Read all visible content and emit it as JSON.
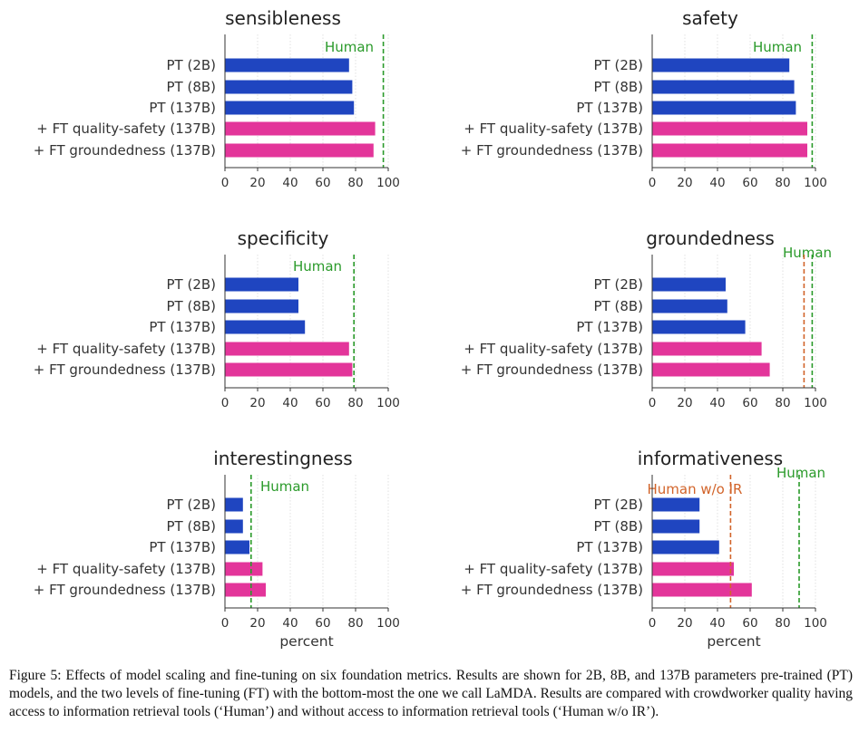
{
  "chart_data": [
    {
      "type": "bar",
      "orientation": "horizontal",
      "title": "sensibleness",
      "categories": [
        "PT (2B)",
        "PT (8B)",
        "PT (137B)",
        "+ FT quality-safety (137B)",
        "+ FT groundedness (137B)"
      ],
      "values": [
        76,
        78,
        79,
        92,
        91
      ],
      "bar_colors": [
        "#1f45c0",
        "#1f45c0",
        "#1f45c0",
        "#e3359a",
        "#e3359a"
      ],
      "xlim": [
        0,
        100
      ],
      "xticks": [
        0,
        20,
        40,
        60,
        80,
        100
      ],
      "xlabel": "",
      "reference_lines": [
        {
          "label": "Human",
          "value": 97,
          "color": "#2a9a2a"
        }
      ]
    },
    {
      "type": "bar",
      "orientation": "horizontal",
      "title": "safety",
      "categories": [
        "PT (2B)",
        "PT (8B)",
        "PT (137B)",
        "+ FT quality-safety (137B)",
        "+ FT groundedness (137B)"
      ],
      "values": [
        84,
        87,
        88,
        95,
        95
      ],
      "bar_colors": [
        "#1f45c0",
        "#1f45c0",
        "#1f45c0",
        "#e3359a",
        "#e3359a"
      ],
      "xlim": [
        0,
        100
      ],
      "xticks": [
        0,
        20,
        40,
        60,
        80,
        100
      ],
      "xlabel": "",
      "reference_lines": [
        {
          "label": "Human",
          "value": 98,
          "color": "#2a9a2a"
        }
      ]
    },
    {
      "type": "bar",
      "orientation": "horizontal",
      "title": "specificity",
      "categories": [
        "PT (2B)",
        "PT (8B)",
        "PT (137B)",
        "+ FT quality-safety (137B)",
        "+ FT groundedness (137B)"
      ],
      "values": [
        45,
        45,
        49,
        76,
        78
      ],
      "bar_colors": [
        "#1f45c0",
        "#1f45c0",
        "#1f45c0",
        "#e3359a",
        "#e3359a"
      ],
      "xlim": [
        0,
        100
      ],
      "xticks": [
        0,
        20,
        40,
        60,
        80,
        100
      ],
      "xlabel": "",
      "reference_lines": [
        {
          "label": "Human",
          "value": 79,
          "color": "#2a9a2a"
        }
      ]
    },
    {
      "type": "bar",
      "orientation": "horizontal",
      "title": "groundedness",
      "categories": [
        "PT (2B)",
        "PT (8B)",
        "PT (137B)",
        "+ FT quality-safety (137B)",
        "+ FT groundedness (137B)"
      ],
      "values": [
        45,
        46,
        57,
        67,
        72
      ],
      "bar_colors": [
        "#1f45c0",
        "#1f45c0",
        "#1f45c0",
        "#e3359a",
        "#e3359a"
      ],
      "xlim": [
        0,
        100
      ],
      "xticks": [
        0,
        20,
        40,
        60,
        80,
        100
      ],
      "xlabel": "",
      "reference_lines": [
        {
          "label": "Human",
          "value": 98,
          "color": "#2a9a2a"
        },
        {
          "label": "",
          "value": 93,
          "color": "#d2642a"
        }
      ]
    },
    {
      "type": "bar",
      "orientation": "horizontal",
      "title": "interestingness",
      "categories": [
        "PT (2B)",
        "PT (8B)",
        "PT (137B)",
        "+ FT quality-safety (137B)",
        "+ FT groundedness (137B)"
      ],
      "values": [
        11,
        11,
        15,
        23,
        25
      ],
      "bar_colors": [
        "#1f45c0",
        "#1f45c0",
        "#1f45c0",
        "#e3359a",
        "#e3359a"
      ],
      "xlim": [
        0,
        100
      ],
      "xticks": [
        0,
        20,
        40,
        60,
        80,
        100
      ],
      "xlabel": "percent",
      "reference_lines": [
        {
          "label": "Human",
          "value": 16,
          "color": "#2a9a2a"
        }
      ]
    },
    {
      "type": "bar",
      "orientation": "horizontal",
      "title": "informativeness",
      "categories": [
        "PT (2B)",
        "PT (8B)",
        "PT (137B)",
        "+ FT quality-safety (137B)",
        "+ FT groundedness (137B)"
      ],
      "values": [
        29,
        29,
        41,
        50,
        61
      ],
      "bar_colors": [
        "#1f45c0",
        "#1f45c0",
        "#1f45c0",
        "#e3359a",
        "#e3359a"
      ],
      "xlim": [
        0,
        100
      ],
      "xticks": [
        0,
        20,
        40,
        60,
        80,
        100
      ],
      "xlabel": "percent",
      "reference_lines": [
        {
          "label": "Human",
          "value": 90,
          "color": "#2a9a2a"
        },
        {
          "label": "Human w/o IR",
          "value": 48,
          "color": "#d2642a"
        }
      ]
    }
  ],
  "caption": "Figure 5: Effects of model scaling and fine-tuning on six foundation metrics. Results are shown for 2B, 8B, and 137B parameters pre-trained (PT) models, and the two levels of fine-tuning (FT) with the bottom-most the one we call LaMDA. Results are compared with crowdworker quality having access to information retrieval tools (‘Human’) and without access to information retrieval tools (‘Human w/o IR’)."
}
